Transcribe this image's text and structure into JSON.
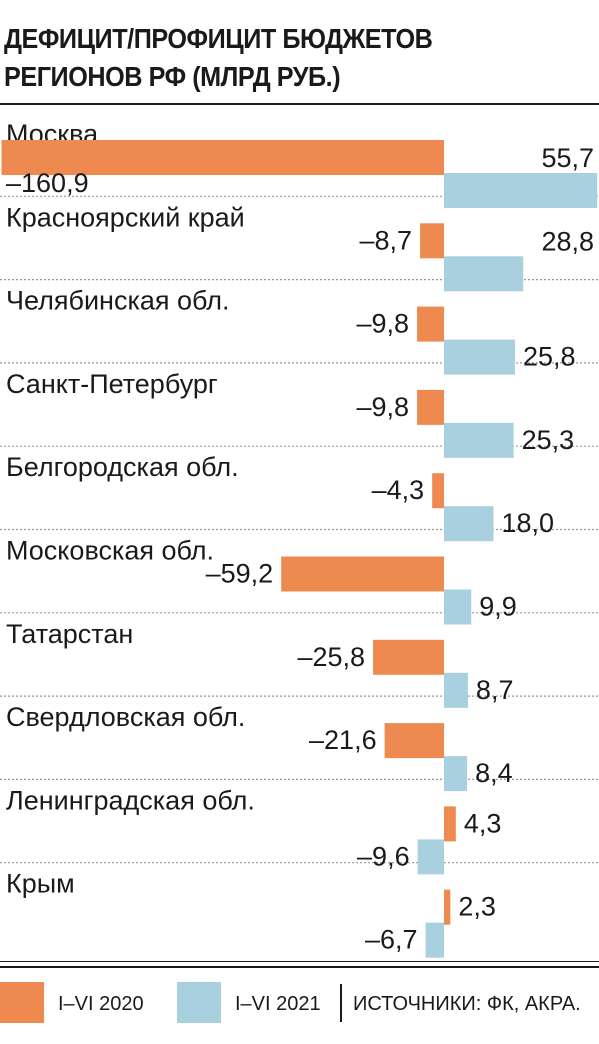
{
  "chart_data": {
    "type": "bar",
    "title": [
      "ДЕФИЦИТ/ПРОФИЦИТ БЮДЖЕТОВ",
      "РЕГИОНОВ РФ (МЛРД РУБ.)"
    ],
    "categories": [
      "Москва",
      "Красноярский край",
      "Челябинская обл.",
      "Санкт-Петербург",
      "Белгородская обл.",
      "Московская обл.",
      "Татарстан",
      "Свердловская обл.",
      "Ленинградская обл.",
      "Крым"
    ],
    "series": [
      {
        "name": "I–VI 2020",
        "color": "#ee8a4f",
        "values": [
          -160.9,
          -8.7,
          -9.8,
          -9.8,
          -4.3,
          -59.2,
          -25.8,
          -21.6,
          4.3,
          2.3
        ],
        "labels": [
          "–160,9",
          "–8,7",
          "–9,8",
          "–9,8",
          "–4,3",
          "–59,2",
          "–25,8",
          "–21,6",
          "4,3",
          "2,3"
        ]
      },
      {
        "name": "I–VI 2021",
        "color": "#a9d0de",
        "values": [
          55.7,
          28.8,
          25.8,
          25.3,
          18.0,
          9.9,
          8.7,
          8.4,
          -9.6,
          -6.7
        ],
        "labels": [
          "55,7",
          "28,8",
          "25,8",
          "25,3",
          "18,0",
          "9,9",
          "8,7",
          "8,4",
          "–9,6",
          "–6,7"
        ]
      }
    ],
    "orientation": "horizontal",
    "grid": false
  },
  "source": "ИСТОЧНИКИ: ФК, АКРА."
}
